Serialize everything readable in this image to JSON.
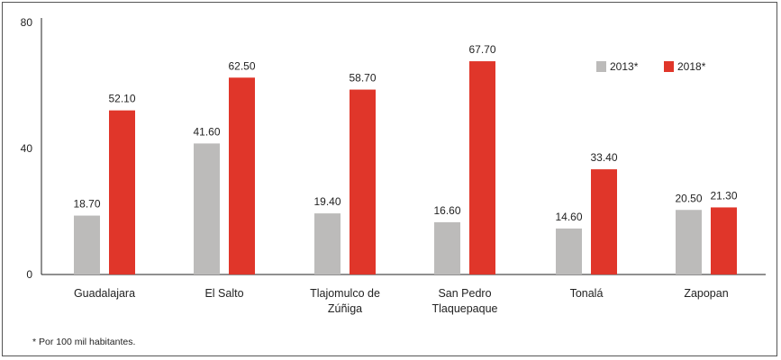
{
  "chart_data": {
    "type": "bar",
    "title": "",
    "xlabel": "",
    "ylabel": "",
    "ylim": [
      0,
      80
    ],
    "yticks": [
      0,
      40,
      80
    ],
    "categories": [
      [
        "Guadalajara"
      ],
      [
        "El Salto"
      ],
      [
        "Tlajomulco de",
        "Zúñiga"
      ],
      [
        "San Pedro",
        "Tlaquepaque"
      ],
      [
        "Tonalá"
      ],
      [
        "Zapopan"
      ]
    ],
    "series": [
      {
        "name": "2013*",
        "color": "#bcbbba",
        "values": [
          18.7,
          41.6,
          19.4,
          16.6,
          14.6,
          20.5
        ],
        "labels": [
          "18.70",
          "41.60",
          "19.40",
          "16.60",
          "14.60",
          "20.50"
        ]
      },
      {
        "name": "2018*",
        "color": "#e0362a",
        "values": [
          52.1,
          62.5,
          58.7,
          67.7,
          33.4,
          21.3
        ],
        "labels": [
          "52.10",
          "62.50",
          "58.70",
          "67.70",
          "33.40",
          "21.30"
        ]
      }
    ],
    "legend_position": "top-right",
    "grid": false
  },
  "footnote": "* Por 100 mil habitantes."
}
